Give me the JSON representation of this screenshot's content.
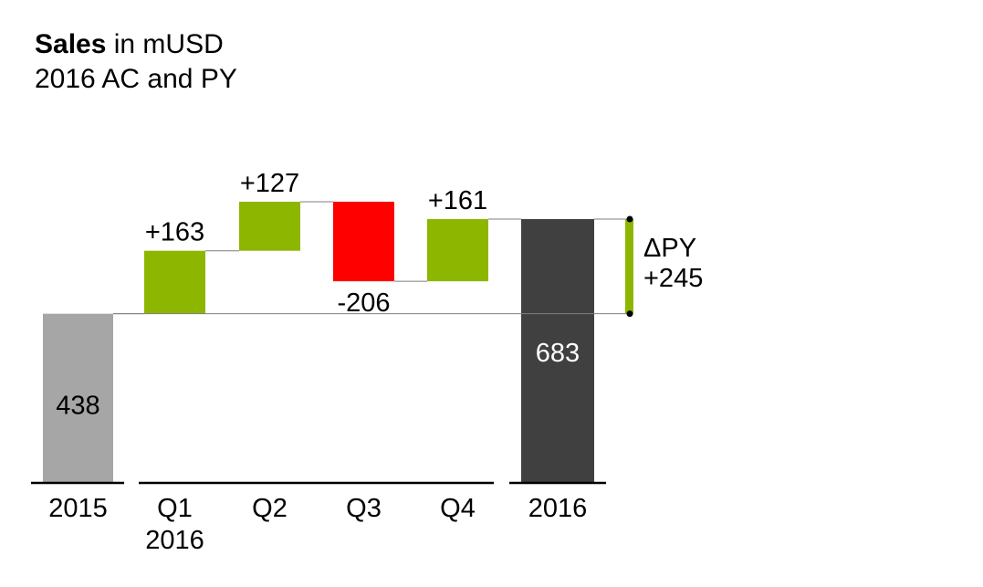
{
  "title": {
    "bold": "Sales",
    "rest": " in mUSD",
    "subtitle": "2016 AC and PY"
  },
  "colors": {
    "start_bar": "#a6a6a6",
    "end_bar": "#404040",
    "positive": "#8db600",
    "negative": "#ff0000",
    "connector": "#7f7f7f",
    "axis": "#000000"
  },
  "chart_data": {
    "type": "bar",
    "subtype": "waterfall",
    "title": "Sales in mUSD",
    "subtitle": "2016 AC and PY",
    "ylim": [
      0,
      683
    ],
    "start": {
      "category": "2015",
      "value": 438,
      "label": "438"
    },
    "steps": [
      {
        "category": "Q1",
        "sublabel": "2016",
        "delta": 163,
        "label": "+163"
      },
      {
        "category": "Q2",
        "sublabel": "",
        "delta": 127,
        "label": "+127"
      },
      {
        "category": "Q3",
        "sublabel": "",
        "delta": -206,
        "label": "-206"
      },
      {
        "category": "Q4",
        "sublabel": "",
        "delta": 161,
        "label": "+161"
      }
    ],
    "end": {
      "category": "2016",
      "value": 683,
      "label": "683"
    },
    "delta_py": {
      "label": "ΔPY",
      "value": 245,
      "value_label": "+245"
    }
  }
}
